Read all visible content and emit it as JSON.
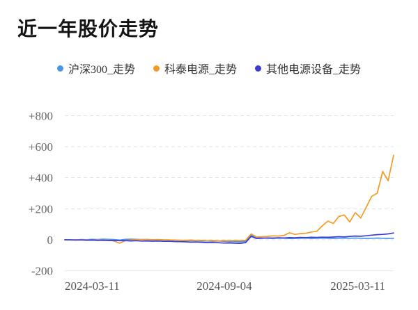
{
  "header": {
    "title": "近一年股价走势"
  },
  "legend": {
    "items": [
      {
        "label": "沪深300_走势",
        "color": "#4A97E8",
        "marker": "dot"
      },
      {
        "label": "科泰电源_走势",
        "color": "#F59A23",
        "marker": "dot"
      },
      {
        "label": "其他电源设备_走势",
        "color": "#3C3CD9",
        "marker": "dot"
      }
    ]
  },
  "chart_data": {
    "type": "line",
    "title": "近一年股价走势",
    "xlabel": "",
    "ylabel": "",
    "x_axis": {
      "tick_labels": [
        "2024-03-11",
        "2024-09-04",
        "2025-03-11"
      ],
      "tick_positions": [
        0.0,
        0.485,
        1.0
      ]
    },
    "y_axis": {
      "ticks": [
        {
          "value": 800,
          "label": "+800"
        },
        {
          "value": 600,
          "label": "+600"
        },
        {
          "value": 400,
          "label": "+400"
        },
        {
          "value": 200,
          "label": "+200"
        },
        {
          "value": 0,
          "label": "0"
        },
        {
          "value": -200,
          "label": "-200"
        }
      ],
      "min": -200,
      "max": 800
    },
    "grid": "horizontal-dashed",
    "legend_position": "top-center",
    "series": [
      {
        "name": "沪深300_走势",
        "color": "#4A97E8",
        "values": [
          0,
          1,
          -1,
          2,
          1,
          3,
          2,
          4,
          3,
          2,
          -2,
          3,
          4,
          3,
          2,
          1,
          0,
          -1,
          -2,
          -1,
          -3,
          -4,
          -5,
          -6,
          -5,
          -7,
          -8,
          -9,
          -8,
          -10,
          -11,
          -12,
          -13,
          -9,
          28,
          16,
          12,
          10,
          9,
          11,
          10,
          8,
          9,
          10,
          11,
          9,
          10,
          11,
          10,
          9,
          10,
          11,
          10,
          11,
          10,
          9,
          10,
          11,
          10,
          9,
          10
        ]
      },
      {
        "name": "科泰电源_走势",
        "color": "#F59A23",
        "values": [
          0,
          -1,
          1,
          0,
          -2,
          -3,
          -1,
          -4,
          -2,
          -8,
          -22,
          -6,
          -2,
          0,
          2,
          3,
          1,
          2,
          0,
          -1,
          -2,
          -3,
          -4,
          -2,
          -5,
          -3,
          -6,
          -4,
          -7,
          -5,
          -6,
          -4,
          -5,
          -3,
          38,
          18,
          20,
          22,
          25,
          24,
          28,
          45,
          35,
          40,
          42,
          50,
          55,
          90,
          120,
          105,
          150,
          160,
          115,
          175,
          140,
          210,
          280,
          300,
          440,
          380,
          545
        ]
      },
      {
        "name": "其他电源设备_走势",
        "color": "#3C3CD9",
        "values": [
          0,
          -1,
          -2,
          -1,
          -3,
          -2,
          -4,
          -3,
          -5,
          -4,
          -6,
          -5,
          -7,
          -6,
          -8,
          -7,
          -9,
          -8,
          -10,
          -9,
          -11,
          -12,
          -13,
          -15,
          -14,
          -16,
          -18,
          -17,
          -19,
          -21,
          -20,
          -22,
          -23,
          -18,
          22,
          8,
          10,
          12,
          11,
          13,
          12,
          14,
          13,
          15,
          14,
          16,
          15,
          17,
          16,
          18,
          20,
          19,
          22,
          24,
          23,
          26,
          30,
          33,
          35,
          38,
          44
        ]
      }
    ]
  }
}
